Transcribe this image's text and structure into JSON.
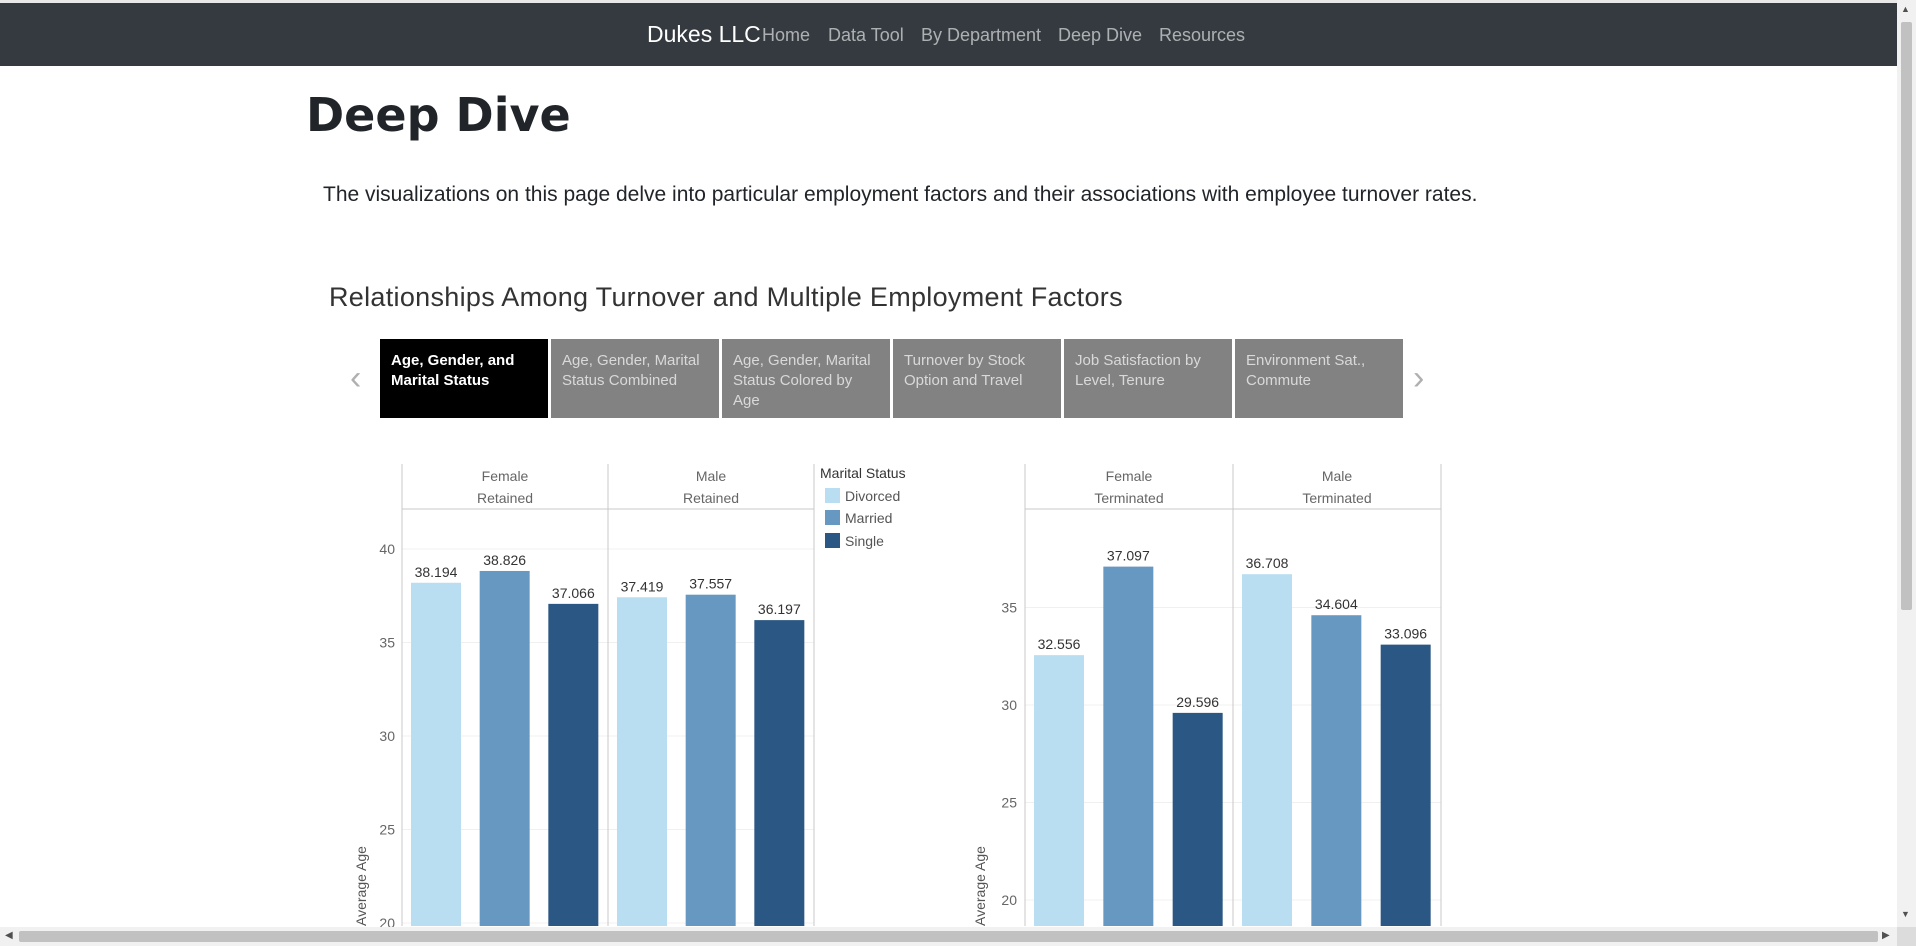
{
  "nav": {
    "brand": "Dukes LLC",
    "links": [
      "Home",
      "Data Tool",
      "By Department",
      "Deep Dive",
      "Resources"
    ]
  },
  "page": {
    "title": "Deep Dive",
    "intro": "The visualizations on this page delve into particular employment factors and their associations with employee turnover rates.",
    "section_title": "Relationships Among Turnover and Multiple Employment Factors"
  },
  "tabs": [
    {
      "label": "Age, Gender, and Marital Status",
      "active": true
    },
    {
      "label": "Age, Gender, Marital Status Combined",
      "active": false
    },
    {
      "label": "Age, Gender, Marital Status Colored by Age",
      "active": false
    },
    {
      "label": "Turnover by Stock Option and Travel",
      "active": false
    },
    {
      "label": "Job Satisfaction by Level, Tenure",
      "active": false
    },
    {
      "label": "Environment Sat., Commute",
      "active": false
    }
  ],
  "legend": {
    "title": "Marital Status",
    "items": [
      {
        "label": "Divorced",
        "color": "#b9ddf1"
      },
      {
        "label": "Married",
        "color": "#6798c1"
      },
      {
        "label": "Single",
        "color": "#2a5783"
      }
    ]
  },
  "chart_data": [
    {
      "type": "bar",
      "ylabel": "Average Age",
      "ylim": [
        19.5,
        42.5
      ],
      "yticks": [
        20,
        25,
        30,
        35,
        40
      ],
      "grid": true,
      "panels": [
        {
          "header": [
            "Female",
            "Retained"
          ],
          "categories": [
            "Divorced",
            "Married",
            "Single"
          ],
          "values": [
            38.194,
            38.826,
            37.066
          ]
        },
        {
          "header": [
            "Male",
            "Retained"
          ],
          "categories": [
            "Divorced",
            "Married",
            "Single"
          ],
          "values": [
            37.419,
            37.557,
            36.197
          ]
        }
      ]
    },
    {
      "type": "bar",
      "ylabel": "Average Age",
      "ylim": [
        19.0,
        39.0
      ],
      "yticks": [
        20,
        25,
        30,
        35
      ],
      "grid": true,
      "panels": [
        {
          "header": [
            "Female",
            "Terminated"
          ],
          "categories": [
            "Divorced",
            "Married",
            "Single"
          ],
          "values": [
            32.556,
            37.097,
            29.596
          ]
        },
        {
          "header": [
            "Male",
            "Terminated"
          ],
          "categories": [
            "Divorced",
            "Married",
            "Single"
          ],
          "values": [
            36.708,
            34.604,
            33.096
          ]
        }
      ]
    }
  ]
}
